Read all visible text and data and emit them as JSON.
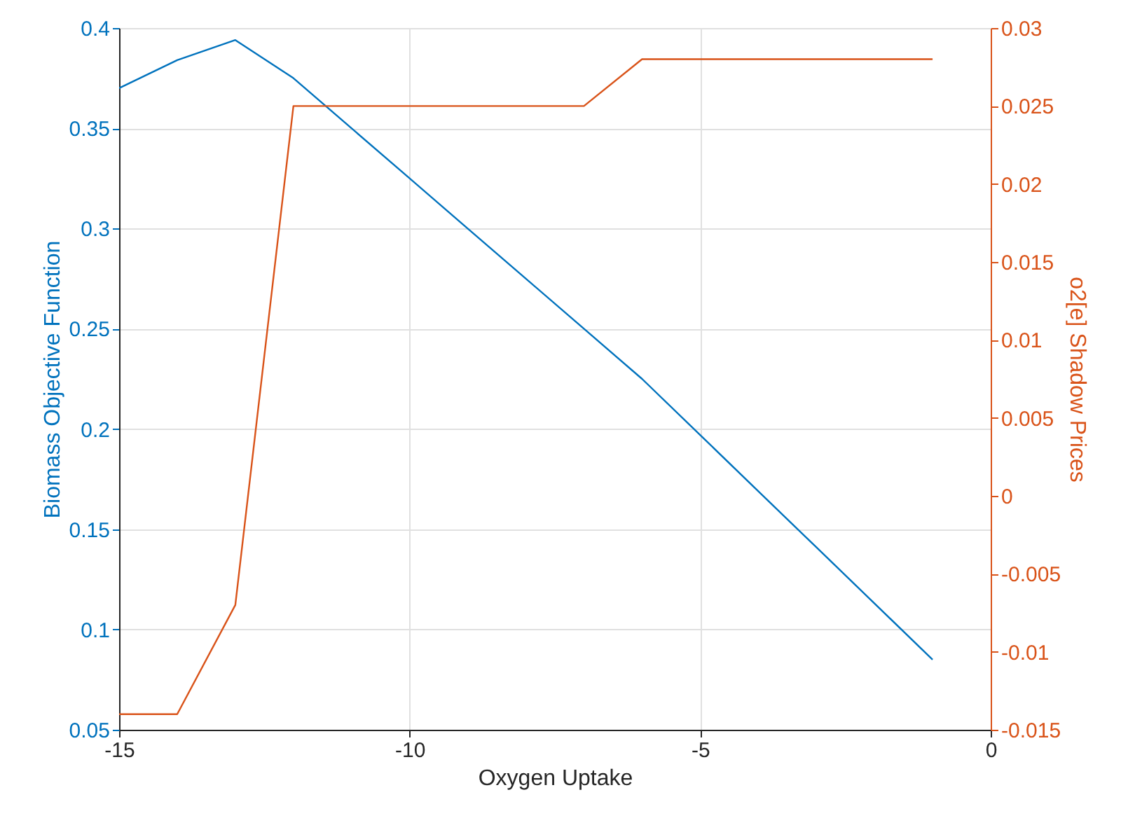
{
  "chart_data": {
    "type": "line",
    "xlabel": "Oxygen Uptake",
    "ylabel": "Biomass Objective Function",
    "y2label": "o2[e] Shadow Prices",
    "x": [
      -15,
      -14,
      -13,
      -12,
      -11,
      -10,
      -9,
      -8,
      -7,
      -6,
      -5,
      -4,
      -3,
      -2,
      -1
    ],
    "series": [
      {
        "color": "#0072bd",
        "values": [
          0.37,
          0.384,
          0.394,
          0.375,
          0.35,
          0.325,
          0.3,
          0.275,
          0.25,
          0.225,
          0.197,
          0.169,
          0.141,
          0.113,
          0.085
        ]
      },
      {
        "color": "#d95319",
        "axis": "y2",
        "values": [
          -0.014,
          -0.014,
          -0.007,
          0.025,
          0.025,
          0.025,
          0.025,
          0.025,
          0.025,
          0.028,
          0.028,
          0.028,
          0.028,
          0.028,
          0.028
        ]
      }
    ],
    "xlim": [
      -15,
      0
    ],
    "xticks": [
      -15,
      -10,
      -5,
      0
    ],
    "ylim": [
      0.05,
      0.4
    ],
    "yticks": [
      0.05,
      0.1,
      0.15,
      0.2,
      0.25,
      0.3,
      0.35,
      0.4
    ],
    "y2lim": [
      -0.015,
      0.03
    ],
    "y2ticks": [
      -0.015,
      -0.01,
      -0.005,
      0,
      0.005,
      0.01,
      0.015,
      0.02,
      0.025,
      0.03
    ],
    "grid": true,
    "line_style": "solid"
  }
}
